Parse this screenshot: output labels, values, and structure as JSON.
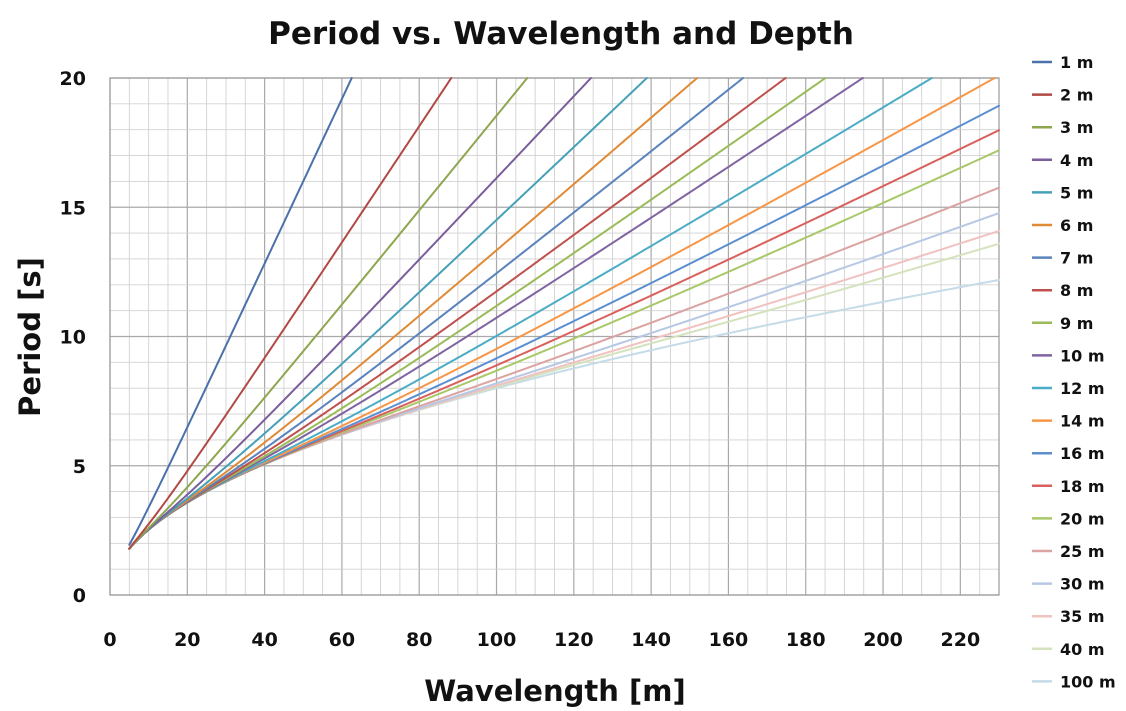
{
  "chart_data": {
    "type": "line",
    "title": "Period vs. Wavelength and Depth",
    "xlabel": "Wavelength [m]",
    "ylabel": "Period [s]",
    "xlim": [
      0,
      230
    ],
    "ylim": [
      0,
      20
    ],
    "x_ticks": [
      0,
      20,
      40,
      60,
      80,
      100,
      120,
      140,
      160,
      180,
      200,
      220
    ],
    "y_ticks": [
      0,
      5,
      10,
      15,
      20
    ],
    "x_tick_labels": [
      "0",
      "20",
      "40",
      "60",
      "80",
      "100",
      "120",
      "140",
      "160",
      "180",
      "200",
      "220"
    ],
    "y_tick_labels": [
      "0",
      "5",
      "10",
      "15",
      "20"
    ],
    "minor_x_step": 5,
    "minor_y_step": 1,
    "grid": true,
    "legend_position": "right",
    "relation": "dispersion: T = sqrt(2*pi*L / (g * tanh(2*pi*d / L))), g = 9.81",
    "x_start": 5,
    "series": [
      {
        "name": "1 m",
        "depth": 1,
        "color": "#4a72a8"
      },
      {
        "name": "2 m",
        "depth": 2,
        "color": "#b14944"
      },
      {
        "name": "3 m",
        "depth": 3,
        "color": "#8ea64e"
      },
      {
        "name": "4 m",
        "depth": 4,
        "color": "#7a5e9c"
      },
      {
        "name": "5 m",
        "depth": 5,
        "color": "#46a0b8"
      },
      {
        "name": "6 m",
        "depth": 6,
        "color": "#e08a36"
      },
      {
        "name": "7 m",
        "depth": 7,
        "color": "#5a83bd"
      },
      {
        "name": "8 m",
        "depth": 8,
        "color": "#c0504d"
      },
      {
        "name": "9 m",
        "depth": 9,
        "color": "#9bbb59"
      },
      {
        "name": "10 m",
        "depth": 10,
        "color": "#8064a2"
      },
      {
        "name": "12 m",
        "depth": 12,
        "color": "#4bacc6"
      },
      {
        "name": "14 m",
        "depth": 14,
        "color": "#f79646"
      },
      {
        "name": "16 m",
        "depth": 16,
        "color": "#5b8fd0"
      },
      {
        "name": "18 m",
        "depth": 18,
        "color": "#d9605c"
      },
      {
        "name": "20 m",
        "depth": 20,
        "color": "#a9c86a"
      },
      {
        "name": "25 m",
        "depth": 25,
        "color": "#dba3a2"
      },
      {
        "name": "30 m",
        "depth": 30,
        "color": "#b7c8e4"
      },
      {
        "name": "35 m",
        "depth": 35,
        "color": "#f0c2c0"
      },
      {
        "name": "40 m",
        "depth": 40,
        "color": "#d4e2bd"
      },
      {
        "name": "100 m",
        "depth": 100,
        "color": "#c5dbe8"
      }
    ]
  }
}
